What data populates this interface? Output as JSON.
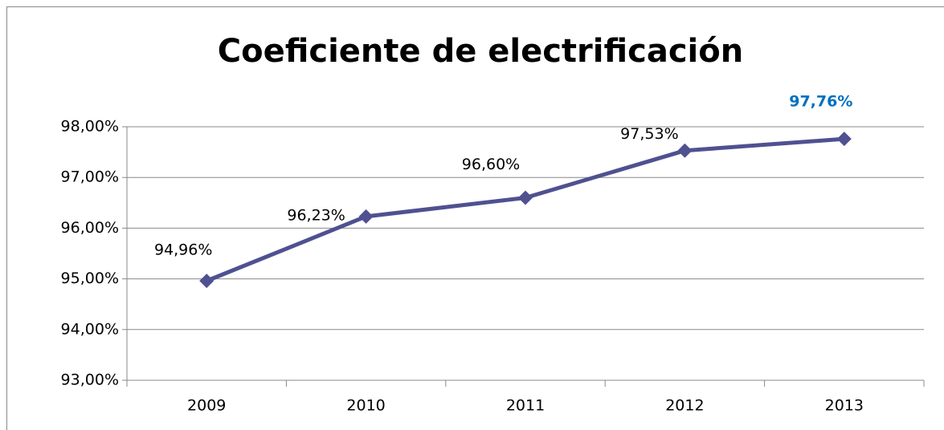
{
  "chart_data": {
    "type": "line",
    "title": "Coeficiente de electrificación",
    "categories": [
      "2009",
      "2010",
      "2011",
      "2012",
      "2013"
    ],
    "series": [
      {
        "name": "Coeficiente de electrificación",
        "color": "#4f5190",
        "values": [
          94.96,
          96.23,
          96.6,
          97.53,
          97.76
        ],
        "value_labels": [
          "94,96%",
          "96,23%",
          "96,60%",
          "97,53%",
          "97,76%"
        ],
        "value_label_colors": [
          "#000000",
          "#000000",
          "#000000",
          "#000000",
          "#0070c0"
        ]
      }
    ],
    "ylim": [
      93,
      98
    ],
    "yticks": [
      {
        "value": 93,
        "label": "93,00%"
      },
      {
        "value": 94,
        "label": "94,00%"
      },
      {
        "value": 95,
        "label": "95,00%"
      },
      {
        "value": 96,
        "label": "96,00%"
      },
      {
        "value": 97,
        "label": "97,00%"
      },
      {
        "value": 98,
        "label": "98,00%"
      }
    ],
    "grid": true
  }
}
